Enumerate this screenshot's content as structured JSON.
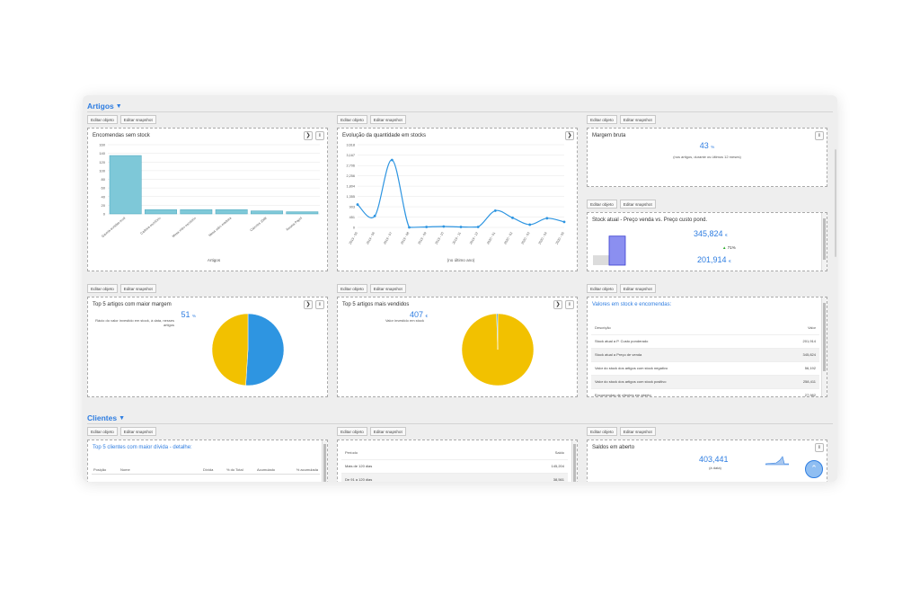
{
  "sections": {
    "artigos": "Artigos",
    "clientes": "Clientes"
  },
  "buttons": {
    "edit_object": "Editar objeto",
    "edit_snapshot": "Editar snapshot"
  },
  "icons": {
    "next": "chevron-right-icon",
    "info": "info-icon",
    "collapse": "chevron-down-icon",
    "scroll_top": "chevron-up-icon"
  },
  "colors": {
    "accent": "#2e7de1",
    "bar": "#7ec8d8",
    "pie_yellow": "#f2c100",
    "pie_blue": "#2e95e1",
    "line": "#2e95e1"
  },
  "widgets": {
    "encomendas": {
      "title": "Encomendas sem stock",
      "xlabel": "Artigos"
    },
    "evolucao": {
      "title": "Evolução da quantidade em stocks",
      "xlabel": "(no último ano)"
    },
    "margem": {
      "title": "Margem bruta",
      "value": "43",
      "unit": "%",
      "note": "(nos artigos, durante os últimos 12 meses)"
    },
    "stock_atual": {
      "title": "Stock atual - Preço venda vs. Preço custo pond.",
      "value_top": "345,824",
      "value_bottom": "201,914",
      "unit": "€",
      "delta": "71%",
      "bar_values": [
        201914,
        345824
      ]
    },
    "top5_margem": {
      "title": "Top 5 artigos com maior margem",
      "kpi": "51",
      "kpi_unit": "%",
      "note": "Rácio do valor investido em stock, à data, nesses artigos"
    },
    "top5_vendidos": {
      "title": "Top 5 artigos mais vendidos",
      "kpi": "407",
      "kpi_unit": "€",
      "note": "Valor investido em stock"
    },
    "valores": {
      "title": "Valores em stock e encomendas:",
      "headers": [
        "Descrição",
        "Valor"
      ],
      "rows": [
        [
          "Stock atual a P. Custo ponderado",
          "201,914"
        ],
        [
          "Stock atual a Preço de venda",
          "345,824"
        ],
        [
          "Valor do stock dos artigos com stock negativo",
          "56,192"
        ],
        [
          "Valor do stock dos artigos com stock positivo",
          "258,411"
        ],
        [
          "Encomendas de clientes em aberto",
          "27,982"
        ]
      ]
    },
    "top5_clientes": {
      "title": "Top 5 clientes com maior dívida - detalhe:",
      "headers": [
        "Posição",
        "Nome",
        "Dívida",
        "% do Total",
        "Acumulado",
        "% acumulada"
      ]
    },
    "periodos": {
      "headers": [
        "Período",
        "Saldo"
      ],
      "rows": [
        [
          "Mais de 120 dias",
          "145,204"
        ],
        [
          "De 91 a 120 dias",
          "38,561"
        ]
      ]
    },
    "saldos": {
      "title": "Saldos em aberto",
      "value": "403,441",
      "note": "(à data)"
    }
  },
  "chart_data": [
    {
      "type": "bar",
      "title": "Encomendas sem stock",
      "xlabel": "Artigos",
      "categories": [
        "Gaveta sortidas mod",
        "Cadeira escritório",
        "Mesa vidro escritório",
        "Mesa vidro madeira",
        "Caixotes 100lt",
        "Resma Papel"
      ],
      "values": [
        135,
        10,
        10,
        10,
        7,
        5
      ],
      "ylim": [
        0,
        160
      ],
      "yticks": [
        0,
        20,
        40,
        60,
        80,
        100,
        120,
        140,
        160
      ],
      "grid": true
    },
    {
      "type": "line",
      "title": "Evolução da quantidade em stocks",
      "xlabel": "(no último ano)",
      "categories": [
        "2019 - 05",
        "2019 - 06",
        "2019 - 07",
        "2019 - 08",
        "2019 - 09",
        "2019 - 10",
        "2019 - 11",
        "2019 - 12",
        "2020 - 01",
        "2020 - 02",
        "2020 - 03",
        "2020 - 04",
        "2020 - 05"
      ],
      "values": [
        1000,
        500,
        2950,
        0,
        20,
        40,
        20,
        20,
        730,
        420,
        120,
        400,
        240
      ],
      "yticks": [
        0,
        451,
        903,
        1355,
        1804,
        2256,
        2706,
        3167,
        3618
      ],
      "ylim": [
        0,
        3618
      ],
      "grid": true
    },
    {
      "type": "pie",
      "title": "Top 5 artigos com maior margem",
      "values": [
        51,
        49
      ],
      "colors": [
        "#2e95e1",
        "#f2c100"
      ]
    },
    {
      "type": "pie",
      "title": "Top 5 artigos mais vendidos",
      "values": [
        99.5,
        0.5
      ],
      "colors": [
        "#f2c100",
        "#2e95e1"
      ]
    }
  ]
}
